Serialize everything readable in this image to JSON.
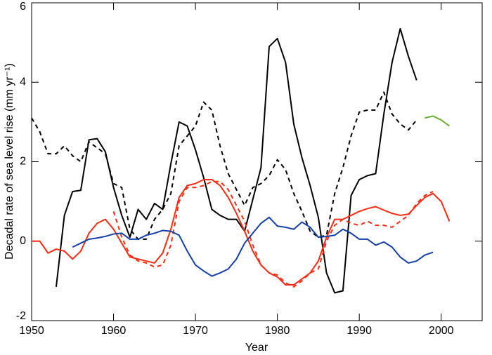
{
  "chart_data": {
    "type": "line",
    "xlabel": "Year",
    "ylabel": "Decadal rate of sea level rise (mm yr⁻¹)",
    "xlim": [
      1950,
      2005
    ],
    "xticks": [
      1950,
      1960,
      1970,
      1980,
      1990,
      2000
    ],
    "ylim": [
      -2,
      6
    ],
    "yticks": [
      -2,
      0,
      2,
      4,
      6
    ],
    "series": [
      {
        "color": "#000000",
        "dash": false,
        "x": [
          1953,
          1954,
          1955,
          1956,
          1957,
          1958,
          1959,
          1960,
          1961,
          1962,
          1963,
          1964,
          1965,
          1966,
          1967,
          1968,
          1969,
          1970,
          1971,
          1972,
          1973,
          1974,
          1975,
          1976,
          1977,
          1978,
          1979,
          1980,
          1981,
          1982,
          1983,
          1984,
          1985,
          1986,
          1987,
          1988,
          1989,
          1990,
          1991,
          1992,
          1993,
          1994,
          1995,
          1996,
          1997
        ],
        "values": [
          -1.15,
          0.65,
          1.25,
          1.28,
          2.55,
          2.58,
          2.25,
          1.35,
          0.65,
          0.1,
          0.8,
          0.55,
          0.95,
          0.8,
          1.95,
          3.0,
          2.9,
          2.3,
          1.6,
          0.8,
          0.65,
          0.55,
          0.55,
          0.25,
          1.05,
          1.85,
          4.9,
          5.1,
          4.5,
          2.95,
          2.1,
          1.4,
          0.6,
          -0.8,
          -1.3,
          -1.25,
          1.15,
          1.55,
          1.65,
          1.7,
          3.2,
          4.5,
          5.35,
          4.65,
          4.05
        ]
      },
      {
        "color": "#000000",
        "dash": true,
        "x": [
          1950,
          1951,
          1952,
          1953,
          1954,
          1955,
          1956,
          1957,
          1958,
          1959,
          1960,
          1961,
          1962,
          1963,
          1964,
          1965,
          1966,
          1967,
          1968,
          1969,
          1970,
          1971,
          1972,
          1973,
          1974,
          1975,
          1976,
          1977,
          1978,
          1979,
          1980,
          1981,
          1982,
          1983,
          1984,
          1985,
          1986,
          1987,
          1988,
          1989,
          1990,
          1991,
          1992,
          1993,
          1994,
          1995,
          1996,
          1997
        ],
        "values": [
          3.1,
          2.75,
          2.2,
          2.2,
          2.4,
          2.15,
          2.0,
          2.5,
          2.35,
          2.2,
          1.45,
          1.35,
          0.3,
          0.05,
          0.05,
          0.55,
          0.8,
          1.2,
          2.4,
          2.65,
          2.9,
          3.5,
          3.3,
          2.4,
          1.7,
          1.3,
          0.9,
          1.35,
          1.45,
          1.65,
          2.05,
          1.8,
          1.2,
          0.75,
          0.25,
          0.1,
          0.15,
          1.2,
          1.85,
          2.65,
          3.25,
          3.3,
          3.3,
          3.75,
          3.2,
          2.95,
          2.8,
          3.05
        ]
      },
      {
        "color": "#ff2a12",
        "dash": false,
        "x": [
          1950,
          1951,
          1952,
          1953,
          1954,
          1955,
          1956,
          1957,
          1958,
          1959,
          1960,
          1961,
          1962,
          1963,
          1964,
          1965,
          1966,
          1967,
          1968,
          1969,
          1970,
          1971,
          1972,
          1973,
          1974,
          1975,
          1976,
          1977,
          1978,
          1979,
          1980,
          1981,
          1982,
          1983,
          1984,
          1985,
          1986,
          1987,
          1988,
          1989,
          1990,
          1991,
          1992,
          1993,
          1994,
          1995,
          1996,
          1997,
          1998,
          1999,
          2000,
          2001
        ],
        "values": [
          0.0,
          0.0,
          -0.3,
          -0.2,
          -0.25,
          -0.45,
          -0.25,
          0.2,
          0.45,
          0.55,
          0.3,
          -0.05,
          -0.4,
          -0.45,
          -0.5,
          -0.55,
          -0.3,
          0.3,
          1.1,
          1.4,
          1.45,
          1.55,
          1.55,
          1.4,
          1.1,
          0.7,
          0.25,
          -0.25,
          -0.6,
          -0.8,
          -0.9,
          -1.1,
          -1.1,
          -0.95,
          -0.8,
          -0.5,
          0.1,
          0.55,
          0.55,
          0.65,
          0.75,
          0.82,
          0.87,
          0.78,
          0.7,
          0.65,
          0.68,
          0.9,
          1.1,
          1.2,
          1.0,
          0.5
        ]
      },
      {
        "color": "#ff2a12",
        "dash": true,
        "x": [
          1960,
          1961,
          1962,
          1963,
          1964,
          1965,
          1966,
          1967,
          1968,
          1969,
          1970,
          1971,
          1972,
          1973,
          1974,
          1975,
          1976,
          1977,
          1978,
          1979,
          1980,
          1981,
          1982,
          1983,
          1984,
          1985,
          1986,
          1987,
          1988,
          1989,
          1990,
          1991,
          1992,
          1993,
          1994,
          1995,
          1996,
          1997,
          1998,
          1999
        ],
        "values": [
          0.75,
          0.1,
          -0.35,
          -0.5,
          -0.55,
          -0.65,
          -0.6,
          -0.1,
          1.0,
          1.35,
          1.35,
          1.4,
          1.5,
          1.5,
          1.3,
          0.9,
          0.5,
          -0.1,
          -0.6,
          -0.8,
          -0.85,
          -1.05,
          -1.15,
          -1.0,
          -0.8,
          -0.7,
          0.0,
          0.4,
          0.55,
          0.45,
          0.4,
          0.5,
          0.4,
          0.4,
          0.35,
          0.5,
          0.65,
          0.95,
          1.15,
          1.25
        ]
      },
      {
        "color": "#1240a8",
        "dash": false,
        "x": [
          1955,
          1956,
          1957,
          1958,
          1959,
          1960,
          1961,
          1962,
          1963,
          1964,
          1965,
          1966,
          1967,
          1968,
          1969,
          1970,
          1971,
          1972,
          1973,
          1974,
          1975,
          1976,
          1977,
          1978,
          1979,
          1980,
          1981,
          1982,
          1983,
          1984,
          1985,
          1986,
          1987,
          1988,
          1989,
          1990,
          1991,
          1992,
          1993,
          1994,
          1995,
          1996,
          1997,
          1998,
          1999
        ],
        "values": [
          -0.15,
          -0.05,
          0.05,
          0.08,
          0.12,
          0.18,
          0.2,
          0.05,
          0.05,
          0.15,
          0.2,
          0.27,
          0.25,
          0.15,
          -0.25,
          -0.6,
          -0.75,
          -0.88,
          -0.8,
          -0.7,
          -0.45,
          -0.05,
          0.2,
          0.45,
          0.6,
          0.38,
          0.35,
          0.3,
          0.48,
          0.35,
          0.1,
          0.12,
          0.15,
          0.3,
          0.2,
          0.05,
          0.05,
          -0.1,
          -0.02,
          -0.15,
          -0.4,
          -0.55,
          -0.5,
          -0.35,
          -0.28
        ]
      },
      {
        "color": "#6ab02e",
        "dash": false,
        "x": [
          1998,
          1999,
          2000,
          2001
        ],
        "values": [
          3.1,
          3.15,
          3.05,
          2.9
        ]
      }
    ]
  }
}
